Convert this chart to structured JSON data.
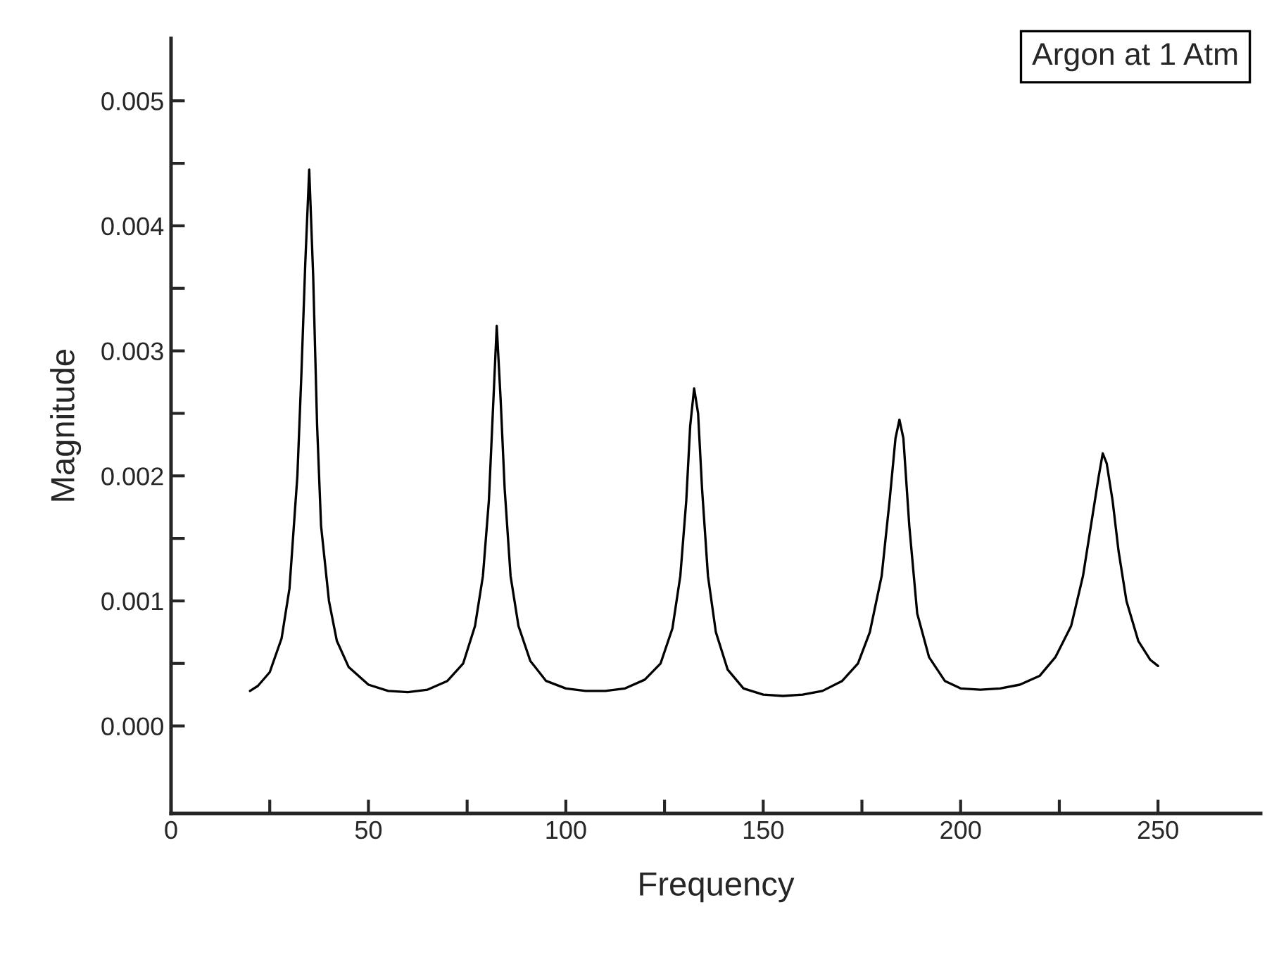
{
  "chart_data": {
    "type": "line",
    "xlabel": "Frequency",
    "ylabel": "Magnitude",
    "annotations": [
      "Argon at 1 Atm"
    ],
    "x": [
      20,
      22,
      25,
      28,
      30,
      32,
      33,
      34,
      35,
      36,
      37,
      38,
      40,
      42,
      45,
      50,
      55,
      60,
      65,
      70,
      74,
      77,
      79,
      80.5,
      81.5,
      82.5,
      83.5,
      84.5,
      86,
      88,
      91,
      95,
      100,
      105,
      110,
      115,
      120,
      124,
      127,
      129,
      130.5,
      131.5,
      132.5,
      133.5,
      134.5,
      136,
      138,
      141,
      145,
      150,
      155,
      160,
      165,
      170,
      174,
      177,
      180,
      182,
      183.5,
      184.5,
      185.5,
      187,
      189,
      192,
      196,
      200,
      205,
      210,
      215,
      220,
      224,
      228,
      231,
      233.5,
      235,
      236,
      237,
      238.5,
      240,
      242,
      245,
      248,
      250
    ],
    "series": [
      {
        "color": "#000000",
        "values": [
          0.00028,
          0.00032,
          0.00043,
          0.0007,
          0.0011,
          0.002,
          0.0028,
          0.0037,
          0.00445,
          0.0036,
          0.0024,
          0.0016,
          0.001,
          0.00068,
          0.00047,
          0.00033,
          0.00028,
          0.00027,
          0.00029,
          0.00036,
          0.0005,
          0.0008,
          0.0012,
          0.0018,
          0.0025,
          0.0032,
          0.0026,
          0.0019,
          0.0012,
          0.0008,
          0.00052,
          0.00036,
          0.0003,
          0.00028,
          0.00028,
          0.0003,
          0.00037,
          0.0005,
          0.00078,
          0.0012,
          0.0018,
          0.0024,
          0.0027,
          0.0025,
          0.0019,
          0.0012,
          0.00075,
          0.00045,
          0.0003,
          0.00025,
          0.00024,
          0.00025,
          0.00028,
          0.00036,
          0.0005,
          0.00075,
          0.0012,
          0.0018,
          0.0023,
          0.00245,
          0.0023,
          0.0016,
          0.0009,
          0.00055,
          0.00036,
          0.0003,
          0.00029,
          0.0003,
          0.00033,
          0.0004,
          0.00055,
          0.0008,
          0.0012,
          0.0017,
          0.002,
          0.00218,
          0.0021,
          0.0018,
          0.0014,
          0.001,
          0.00068,
          0.00053,
          0.00048
        ]
      }
    ],
    "xlim": [
      0,
      276
    ],
    "ylim": [
      -0.0007,
      0.0055
    ],
    "xticks": [
      0,
      50,
      100,
      150,
      200,
      250,
      {
        "value": 25,
        "label": null
      },
      {
        "value": 75,
        "label": null
      },
      {
        "value": 125,
        "label": null
      },
      {
        "value": 175,
        "label": null
      },
      {
        "value": 225,
        "label": null
      }
    ],
    "yticks": [
      {
        "value": 0,
        "label": "0.000"
      },
      {
        "value": 0.001,
        "label": "0.001"
      },
      {
        "value": 0.002,
        "label": "0.002"
      },
      {
        "value": 0.003,
        "label": "0.003"
      },
      {
        "value": 0.004,
        "label": "0.004"
      },
      {
        "value": 0.005,
        "label": "0.005"
      },
      {
        "value": 0.0005,
        "label": null
      },
      {
        "value": 0.0015,
        "label": null
      },
      {
        "value": 0.0025,
        "label": null
      },
      {
        "value": 0.0035,
        "label": null
      },
      {
        "value": 0.0045,
        "label": null
      }
    ],
    "grid": false,
    "legend": false,
    "marker": "none",
    "line_style": "solid"
  }
}
